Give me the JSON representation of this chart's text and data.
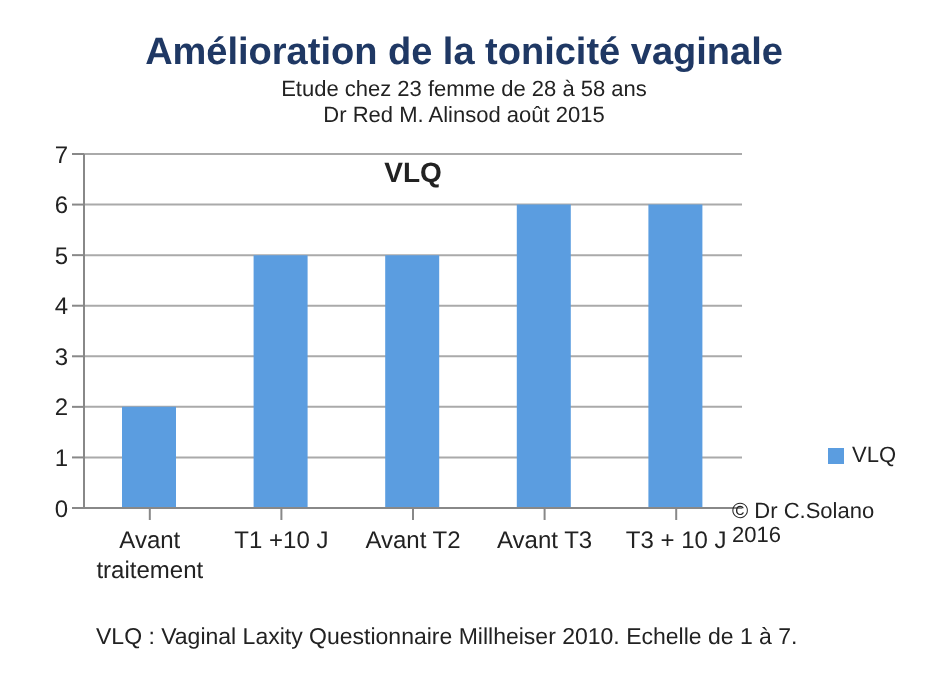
{
  "chart_data": {
    "type": "bar",
    "title": "Amélioration de la tonicité vaginale",
    "subtitle": "Etude chez 23 femme de 28 à 58 ans\nDr Red M. Alinsod août 2015",
    "categories": [
      "Avant traitement",
      "T1 +10 J",
      "Avant T2",
      "Avant T3",
      "T3 + 10 J"
    ],
    "series": [
      {
        "name": "VLQ",
        "color": "#5b9de0",
        "values": [
          2,
          5,
          5,
          6,
          6
        ]
      }
    ],
    "ylim": [
      0,
      7
    ],
    "yticks": [
      0,
      1,
      2,
      3,
      4,
      5,
      6,
      7
    ],
    "grid": "y",
    "legend": "right",
    "annotations": [
      "VLQ",
      "© Dr C.Solano 2016",
      "VLQ : Vaginal Laxity  Questionnaire Millheiser 2010. Echelle de 1 à 7."
    ]
  }
}
